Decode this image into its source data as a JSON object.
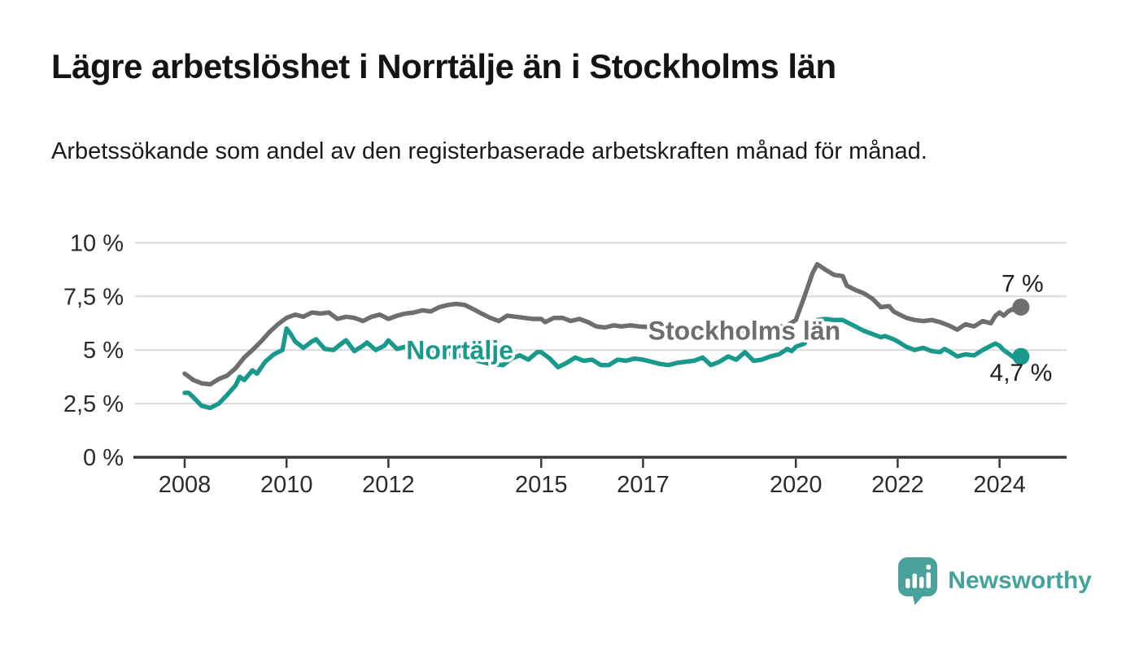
{
  "page": {
    "title": "Lägre arbetslöshet i Norrtälje än i Stockholms län",
    "subtitle": "Arbetssökande som andel av den registerbaserade arbetskraften månad för månad.",
    "background": "#ffffff"
  },
  "branding": {
    "name": "Newsworthy",
    "color": "#44a29b",
    "icon": "bar-chart-speech-bubble-icon"
  },
  "chart_data": {
    "type": "line",
    "title": "Lägre arbetslöshet i Norrtälje än i Stockholms län",
    "subtitle": "Arbetssökande som andel av den registerbaserade arbetskraften månad för månad.",
    "unit": "%",
    "grid": true,
    "x_range": [
      2007.85,
      2025.3
    ],
    "ylim": [
      0,
      10
    ],
    "x_axis": {
      "ticks": [
        2008,
        2010,
        2012,
        2015,
        2017,
        2020,
        2022,
        2024
      ],
      "tick_labels": [
        "2008",
        "2010",
        "2012",
        "2015",
        "2017",
        "2020",
        "2022",
        "2024"
      ]
    },
    "y_axis": {
      "ticks": [
        0,
        2.5,
        5,
        7.5,
        10
      ],
      "tick_labels": [
        "0 %",
        "2,5 %",
        "5 %",
        "7,5 %",
        "10 %"
      ]
    },
    "colors": {
      "grid": "#dadada",
      "axis": "#383838",
      "tick_text": "#2b2b2b",
      "end_label_text": "#1f1f1f"
    },
    "series": [
      {
        "name": "Stockholms län",
        "color": "#6e6e6e",
        "end_value": 7.0,
        "end_label": "7 %",
        "end_label_dx": 2,
        "end_label_dy": -19,
        "inline_label": {
          "text": "Stockholms län",
          "x": 2017.1,
          "y": 5.48
        },
        "points": [
          [
            2008.0,
            3.9
          ],
          [
            2008.17,
            3.6
          ],
          [
            2008.33,
            3.45
          ],
          [
            2008.5,
            3.4
          ],
          [
            2008.67,
            3.65
          ],
          [
            2008.83,
            3.8
          ],
          [
            2009.0,
            4.15
          ],
          [
            2009.17,
            4.65
          ],
          [
            2009.33,
            5.0
          ],
          [
            2009.5,
            5.4
          ],
          [
            2009.67,
            5.85
          ],
          [
            2009.83,
            6.2
          ],
          [
            2010.0,
            6.5
          ],
          [
            2010.17,
            6.65
          ],
          [
            2010.33,
            6.55
          ],
          [
            2010.5,
            6.75
          ],
          [
            2010.67,
            6.7
          ],
          [
            2010.83,
            6.75
          ],
          [
            2011.0,
            6.45
          ],
          [
            2011.17,
            6.55
          ],
          [
            2011.33,
            6.5
          ],
          [
            2011.5,
            6.35
          ],
          [
            2011.67,
            6.55
          ],
          [
            2011.83,
            6.65
          ],
          [
            2012.0,
            6.45
          ],
          [
            2012.17,
            6.6
          ],
          [
            2012.33,
            6.7
          ],
          [
            2012.5,
            6.75
          ],
          [
            2012.67,
            6.85
          ],
          [
            2012.83,
            6.8
          ],
          [
            2013.0,
            7.0
          ],
          [
            2013.17,
            7.1
          ],
          [
            2013.33,
            7.15
          ],
          [
            2013.5,
            7.1
          ],
          [
            2013.67,
            6.9
          ],
          [
            2013.83,
            6.7
          ],
          [
            2014.0,
            6.5
          ],
          [
            2014.17,
            6.35
          ],
          [
            2014.33,
            6.6
          ],
          [
            2014.5,
            6.55
          ],
          [
            2014.67,
            6.5
          ],
          [
            2014.83,
            6.45
          ],
          [
            2015.0,
            6.45
          ],
          [
            2015.08,
            6.3
          ],
          [
            2015.25,
            6.5
          ],
          [
            2015.42,
            6.5
          ],
          [
            2015.58,
            6.35
          ],
          [
            2015.75,
            6.45
          ],
          [
            2015.92,
            6.3
          ],
          [
            2016.08,
            6.1
          ],
          [
            2016.25,
            6.05
          ],
          [
            2016.42,
            6.15
          ],
          [
            2016.58,
            6.1
          ],
          [
            2016.75,
            6.15
          ],
          [
            2016.92,
            6.1
          ],
          [
            2017.25,
            6.05
          ],
          [
            2017.5,
            6.0
          ],
          [
            2018.0,
            5.9
          ],
          [
            2018.5,
            5.85
          ],
          [
            2019.0,
            5.9
          ],
          [
            2019.5,
            6.0
          ],
          [
            2019.83,
            6.15
          ],
          [
            2020.0,
            6.4
          ],
          [
            2020.17,
            7.5
          ],
          [
            2020.33,
            8.6
          ],
          [
            2020.42,
            9.0
          ],
          [
            2020.58,
            8.75
          ],
          [
            2020.75,
            8.5
          ],
          [
            2020.92,
            8.45
          ],
          [
            2021.0,
            8.0
          ],
          [
            2021.17,
            7.8
          ],
          [
            2021.33,
            7.65
          ],
          [
            2021.5,
            7.4
          ],
          [
            2021.67,
            7.0
          ],
          [
            2021.83,
            7.05
          ],
          [
            2021.92,
            6.8
          ],
          [
            2022.0,
            6.7
          ],
          [
            2022.17,
            6.5
          ],
          [
            2022.33,
            6.4
          ],
          [
            2022.5,
            6.35
          ],
          [
            2022.67,
            6.4
          ],
          [
            2022.83,
            6.3
          ],
          [
            2023.0,
            6.15
          ],
          [
            2023.17,
            5.95
          ],
          [
            2023.33,
            6.2
          ],
          [
            2023.5,
            6.1
          ],
          [
            2023.67,
            6.35
          ],
          [
            2023.83,
            6.25
          ],
          [
            2023.92,
            6.6
          ],
          [
            2024.0,
            6.75
          ],
          [
            2024.08,
            6.6
          ],
          [
            2024.17,
            6.8
          ],
          [
            2024.25,
            6.9
          ],
          [
            2024.33,
            6.85
          ],
          [
            2024.42,
            7.0
          ]
        ]
      },
      {
        "name": "Norrtälje",
        "color": "#18998b",
        "end_value": 4.7,
        "end_label": "4,7 %",
        "end_label_dx": 0,
        "end_label_dy": 30,
        "inline_label": {
          "text": "Norrtälje",
          "x": 2012.35,
          "y": 4.58
        },
        "points": [
          [
            2008.0,
            3.0
          ],
          [
            2008.08,
            3.0
          ],
          [
            2008.17,
            2.8
          ],
          [
            2008.33,
            2.4
          ],
          [
            2008.5,
            2.3
          ],
          [
            2008.67,
            2.5
          ],
          [
            2008.83,
            2.9
          ],
          [
            2009.0,
            3.35
          ],
          [
            2009.08,
            3.75
          ],
          [
            2009.17,
            3.6
          ],
          [
            2009.33,
            4.05
          ],
          [
            2009.42,
            3.9
          ],
          [
            2009.58,
            4.45
          ],
          [
            2009.75,
            4.8
          ],
          [
            2009.92,
            5.0
          ],
          [
            2010.0,
            6.0
          ],
          [
            2010.08,
            5.75
          ],
          [
            2010.17,
            5.4
          ],
          [
            2010.33,
            5.1
          ],
          [
            2010.5,
            5.4
          ],
          [
            2010.58,
            5.5
          ],
          [
            2010.75,
            5.05
          ],
          [
            2010.92,
            5.0
          ],
          [
            2011.08,
            5.3
          ],
          [
            2011.17,
            5.45
          ],
          [
            2011.33,
            4.95
          ],
          [
            2011.5,
            5.2
          ],
          [
            2011.58,
            5.35
          ],
          [
            2011.75,
            5.0
          ],
          [
            2011.92,
            5.2
          ],
          [
            2012.0,
            5.45
          ],
          [
            2012.17,
            5.05
          ],
          [
            2012.33,
            5.15
          ],
          [
            2012.5,
            5.1
          ],
          [
            2012.75,
            5.0
          ],
          [
            2013.0,
            4.9
          ],
          [
            2013.5,
            4.7
          ],
          [
            2013.75,
            4.5
          ],
          [
            2014.0,
            4.35
          ],
          [
            2014.25,
            4.3
          ],
          [
            2014.42,
            4.6
          ],
          [
            2014.58,
            4.75
          ],
          [
            2014.75,
            4.55
          ],
          [
            2014.92,
            4.9
          ],
          [
            2015.0,
            4.9
          ],
          [
            2015.17,
            4.6
          ],
          [
            2015.33,
            4.2
          ],
          [
            2015.5,
            4.4
          ],
          [
            2015.67,
            4.65
          ],
          [
            2015.83,
            4.5
          ],
          [
            2016.0,
            4.55
          ],
          [
            2016.17,
            4.3
          ],
          [
            2016.33,
            4.3
          ],
          [
            2016.5,
            4.55
          ],
          [
            2016.67,
            4.5
          ],
          [
            2016.83,
            4.6
          ],
          [
            2017.0,
            4.55
          ],
          [
            2017.17,
            4.45
          ],
          [
            2017.33,
            4.35
          ],
          [
            2017.5,
            4.3
          ],
          [
            2017.67,
            4.4
          ],
          [
            2017.83,
            4.45
          ],
          [
            2018.0,
            4.5
          ],
          [
            2018.17,
            4.65
          ],
          [
            2018.33,
            4.3
          ],
          [
            2018.5,
            4.45
          ],
          [
            2018.67,
            4.7
          ],
          [
            2018.83,
            4.55
          ],
          [
            2019.0,
            4.9
          ],
          [
            2019.17,
            4.5
          ],
          [
            2019.33,
            4.55
          ],
          [
            2019.5,
            4.7
          ],
          [
            2019.67,
            4.8
          ],
          [
            2019.83,
            5.05
          ],
          [
            2019.92,
            4.95
          ],
          [
            2020.0,
            5.15
          ],
          [
            2020.17,
            5.3
          ],
          [
            2020.33,
            6.1
          ],
          [
            2020.42,
            6.4
          ],
          [
            2020.58,
            6.45
          ],
          [
            2020.75,
            6.4
          ],
          [
            2020.92,
            6.4
          ],
          [
            2021.0,
            6.3
          ],
          [
            2021.17,
            6.1
          ],
          [
            2021.33,
            5.9
          ],
          [
            2021.5,
            5.75
          ],
          [
            2021.67,
            5.6
          ],
          [
            2021.75,
            5.65
          ],
          [
            2021.92,
            5.5
          ],
          [
            2022.0,
            5.4
          ],
          [
            2022.17,
            5.15
          ],
          [
            2022.33,
            5.0
          ],
          [
            2022.5,
            5.1
          ],
          [
            2022.67,
            4.95
          ],
          [
            2022.83,
            4.9
          ],
          [
            2022.92,
            5.05
          ],
          [
            2023.0,
            4.95
          ],
          [
            2023.17,
            4.7
          ],
          [
            2023.33,
            4.8
          ],
          [
            2023.5,
            4.75
          ],
          [
            2023.67,
            5.0
          ],
          [
            2023.83,
            5.2
          ],
          [
            2023.92,
            5.3
          ],
          [
            2024.0,
            5.2
          ],
          [
            2024.08,
            5.0
          ],
          [
            2024.17,
            4.85
          ],
          [
            2024.25,
            4.7
          ],
          [
            2024.33,
            4.6
          ],
          [
            2024.42,
            4.7
          ]
        ]
      }
    ]
  }
}
